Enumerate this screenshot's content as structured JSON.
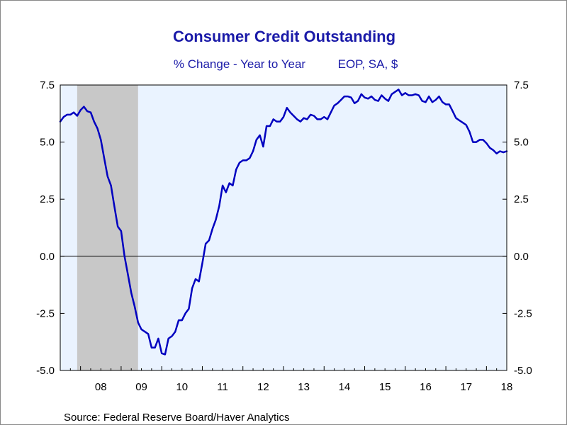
{
  "chart_data": {
    "type": "line",
    "title": "Consumer Credit Outstanding",
    "subtitle_left": "% Change - Year to Year",
    "subtitle_right": "EOP, SA, $",
    "source": "Source:  Federal Reserve Board/Haver Analytics",
    "ylim": [
      -5.0,
      7.5
    ],
    "yticks": [
      "7.5",
      "5.0",
      "2.5",
      "0.0",
      "-2.5",
      "-5.0"
    ],
    "ytick_values": [
      7.5,
      5.0,
      2.5,
      0.0,
      -2.5,
      -5.0
    ],
    "xlim": [
      2007.5,
      2018.5
    ],
    "xticks": [
      "08",
      "09",
      "10",
      "11",
      "12",
      "13",
      "14",
      "15",
      "16",
      "17",
      "18"
    ],
    "xtick_centers": [
      2008.5,
      2009.5,
      2010.5,
      2011.5,
      2012.5,
      2013.5,
      2014.5,
      2015.5,
      2016.5,
      2017.5,
      2018.5
    ],
    "recession": [
      2007.917,
      2009.417
    ],
    "zero_line": true,
    "colors": {
      "line": "#0000c0",
      "plot_background": "#eaf3ff",
      "recession_shade": "#c8c8c8",
      "title": "#1a1aa8"
    },
    "series": [
      {
        "points": [
          [
            2007.5,
            5.9
          ],
          [
            2007.583,
            6.1
          ],
          [
            2007.667,
            6.2
          ],
          [
            2007.75,
            6.2
          ],
          [
            2007.833,
            6.3
          ],
          [
            2007.917,
            6.15
          ],
          [
            2008.0,
            6.4
          ],
          [
            2008.083,
            6.55
          ],
          [
            2008.167,
            6.35
          ],
          [
            2008.25,
            6.3
          ],
          [
            2008.333,
            5.9
          ],
          [
            2008.417,
            5.6
          ],
          [
            2008.5,
            5.1
          ],
          [
            2008.583,
            4.3
          ],
          [
            2008.667,
            3.5
          ],
          [
            2008.75,
            3.1
          ],
          [
            2008.833,
            2.2
          ],
          [
            2008.917,
            1.3
          ],
          [
            2009.0,
            1.1
          ],
          [
            2009.083,
            0.0
          ],
          [
            2009.167,
            -0.8
          ],
          [
            2009.25,
            -1.6
          ],
          [
            2009.333,
            -2.2
          ],
          [
            2009.417,
            -2.9
          ],
          [
            2009.5,
            -3.2
          ],
          [
            2009.583,
            -3.3
          ],
          [
            2009.667,
            -3.4
          ],
          [
            2009.75,
            -4.0
          ],
          [
            2009.833,
            -4.0
          ],
          [
            2009.917,
            -3.6
          ],
          [
            2010.0,
            -4.25
          ],
          [
            2010.083,
            -4.3
          ],
          [
            2010.167,
            -3.6
          ],
          [
            2010.25,
            -3.5
          ],
          [
            2010.333,
            -3.3
          ],
          [
            2010.417,
            -2.8
          ],
          [
            2010.5,
            -2.8
          ],
          [
            2010.583,
            -2.5
          ],
          [
            2010.667,
            -2.3
          ],
          [
            2010.75,
            -1.4
          ],
          [
            2010.833,
            -1.0
          ],
          [
            2010.917,
            -1.1
          ],
          [
            2011.0,
            -0.3
          ],
          [
            2011.083,
            0.55
          ],
          [
            2011.167,
            0.7
          ],
          [
            2011.25,
            1.2
          ],
          [
            2011.333,
            1.6
          ],
          [
            2011.417,
            2.2
          ],
          [
            2011.5,
            3.1
          ],
          [
            2011.583,
            2.8
          ],
          [
            2011.667,
            3.2
          ],
          [
            2011.75,
            3.1
          ],
          [
            2011.833,
            3.8
          ],
          [
            2011.917,
            4.1
          ],
          [
            2012.0,
            4.2
          ],
          [
            2012.083,
            4.2
          ],
          [
            2012.167,
            4.3
          ],
          [
            2012.25,
            4.6
          ],
          [
            2012.333,
            5.1
          ],
          [
            2012.417,
            5.3
          ],
          [
            2012.5,
            4.8
          ],
          [
            2012.583,
            5.7
          ],
          [
            2012.667,
            5.7
          ],
          [
            2012.75,
            6.0
          ],
          [
            2012.833,
            5.9
          ],
          [
            2012.917,
            5.9
          ],
          [
            2013.0,
            6.1
          ],
          [
            2013.083,
            6.5
          ],
          [
            2013.167,
            6.3
          ],
          [
            2013.25,
            6.15
          ],
          [
            2013.333,
            6.0
          ],
          [
            2013.417,
            5.9
          ],
          [
            2013.5,
            6.05
          ],
          [
            2013.583,
            6.0
          ],
          [
            2013.667,
            6.2
          ],
          [
            2013.75,
            6.15
          ],
          [
            2013.833,
            6.0
          ],
          [
            2013.917,
            6.0
          ],
          [
            2014.0,
            6.1
          ],
          [
            2014.083,
            6.0
          ],
          [
            2014.167,
            6.3
          ],
          [
            2014.25,
            6.6
          ],
          [
            2014.333,
            6.7
          ],
          [
            2014.417,
            6.85
          ],
          [
            2014.5,
            7.0
          ],
          [
            2014.583,
            7.0
          ],
          [
            2014.667,
            6.95
          ],
          [
            2014.75,
            6.7
          ],
          [
            2014.833,
            6.8
          ],
          [
            2014.917,
            7.1
          ],
          [
            2015.0,
            6.95
          ],
          [
            2015.083,
            6.9
          ],
          [
            2015.167,
            7.0
          ],
          [
            2015.25,
            6.85
          ],
          [
            2015.333,
            6.8
          ],
          [
            2015.417,
            7.05
          ],
          [
            2015.5,
            6.9
          ],
          [
            2015.583,
            6.8
          ],
          [
            2015.667,
            7.1
          ],
          [
            2015.75,
            7.2
          ],
          [
            2015.833,
            7.3
          ],
          [
            2015.917,
            7.05
          ],
          [
            2016.0,
            7.15
          ],
          [
            2016.083,
            7.05
          ],
          [
            2016.167,
            7.05
          ],
          [
            2016.25,
            7.1
          ],
          [
            2016.333,
            7.05
          ],
          [
            2016.417,
            6.8
          ],
          [
            2016.5,
            6.75
          ],
          [
            2016.583,
            7.0
          ],
          [
            2016.667,
            6.75
          ],
          [
            2016.75,
            6.85
          ],
          [
            2016.833,
            7.0
          ],
          [
            2016.917,
            6.75
          ],
          [
            2017.0,
            6.65
          ],
          [
            2017.083,
            6.65
          ],
          [
            2017.167,
            6.35
          ],
          [
            2017.25,
            6.05
          ],
          [
            2017.333,
            5.95
          ],
          [
            2017.417,
            5.85
          ],
          [
            2017.5,
            5.75
          ],
          [
            2017.583,
            5.45
          ],
          [
            2017.667,
            5.0
          ],
          [
            2017.75,
            5.0
          ],
          [
            2017.833,
            5.1
          ],
          [
            2017.917,
            5.1
          ],
          [
            2018.0,
            4.95
          ],
          [
            2018.083,
            4.75
          ],
          [
            2018.167,
            4.65
          ],
          [
            2018.25,
            4.5
          ],
          [
            2018.333,
            4.6
          ],
          [
            2018.417,
            4.55
          ],
          [
            2018.5,
            4.6
          ]
        ]
      }
    ]
  }
}
